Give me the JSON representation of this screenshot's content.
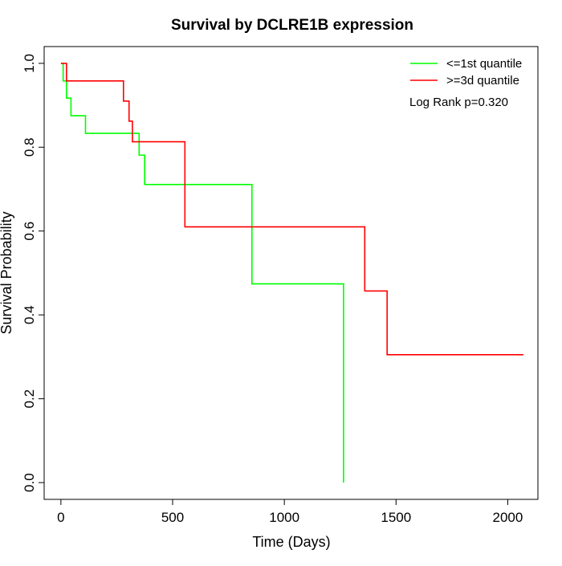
{
  "chart_data": {
    "type": "line",
    "step": true,
    "title": "Survival by DCLRE1B expression",
    "xlabel": "Time (Days)",
    "ylabel": "Survival Probability",
    "xlim": [
      -75,
      2135
    ],
    "ylim": [
      -0.04,
      1.04
    ],
    "xticks": [
      0,
      500,
      1000,
      1500,
      2000
    ],
    "xtick_labels": [
      "0",
      "500",
      "1000",
      "1500",
      "2000"
    ],
    "yticks": [
      0.0,
      0.2,
      0.4,
      0.6,
      0.8,
      1.0
    ],
    "ytick_labels": [
      "0.0",
      "0.2",
      "0.4",
      "0.6",
      "0.8",
      "1.0"
    ],
    "grid": false,
    "legend_position": "top-right",
    "annotation": "Log Rank p=0.320",
    "series": [
      {
        "name": "<=1st quantile",
        "color": "#00ff00",
        "x": [
          0,
          10,
          25,
          45,
          110,
          350,
          375,
          855,
          1265,
          1265
        ],
        "y": [
          1.0,
          0.958,
          0.917,
          0.875,
          0.833,
          0.781,
          0.711,
          0.474,
          0.474,
          0.0
        ]
      },
      {
        "name": ">=3d quantile",
        "color": "#ff0000",
        "x": [
          0,
          25,
          280,
          305,
          320,
          555,
          1360,
          1460,
          2070
        ],
        "y": [
          1.0,
          0.958,
          0.91,
          0.862,
          0.813,
          0.61,
          0.457,
          0.305,
          0.305
        ]
      }
    ]
  }
}
